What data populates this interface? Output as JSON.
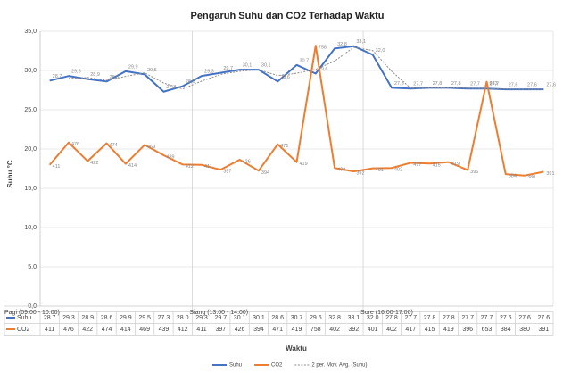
{
  "chart_data": {
    "type": "line",
    "title": "Pengaruh Suhu dan CO2 Terhadap Waktu",
    "y_label": "Suhu °C",
    "x_label": "Waktu",
    "categories": [
      "Pagi (09.00 - 10.00)",
      null,
      null,
      null,
      null,
      null,
      null,
      null,
      "Siang (13.00 - 14.00)",
      null,
      null,
      null,
      null,
      null,
      null,
      null,
      null,
      "Sore (16.00-17.00)",
      null,
      null,
      null,
      null,
      null,
      null,
      null,
      null,
      null
    ],
    "ylim": [
      0,
      35
    ],
    "yticks": [
      {
        "value": 0,
        "label": "0,0"
      },
      {
        "value": 5,
        "label": "5,0"
      },
      {
        "value": 10,
        "label": "10,0"
      },
      {
        "value": 15,
        "label": "15,0"
      },
      {
        "value": 20,
        "label": "20,0"
      },
      {
        "value": 25,
        "label": "25,0"
      },
      {
        "value": 30,
        "label": "30,0"
      },
      {
        "value": 35,
        "label": "35,0"
      }
    ],
    "y2lim": [
      0,
      800
    ],
    "legend": "bottom",
    "series": [
      {
        "name": "Suhu",
        "color": "#4472c4",
        "values": [
          28.7,
          29.3,
          28.9,
          28.6,
          29.9,
          29.5,
          27.3,
          28.0,
          29.3,
          29.7,
          30.1,
          30.1,
          28.6,
          30.7,
          29.6,
          32.8,
          33.1,
          32.0,
          27.8,
          27.7,
          27.8,
          27.8,
          27.7,
          27.7,
          27.6,
          27.6,
          27.6
        ],
        "value_labels": [
          "28,7",
          "29,3",
          "28,9",
          "28,6",
          "29,9",
          "29,5",
          "27,3",
          "28,0",
          "29,3",
          "29,7",
          "30,1",
          "30,1",
          "28,6",
          "30,7",
          "29,6",
          "32,8",
          "33,1",
          "32,0",
          "27,8",
          "27,7",
          "27,8",
          "27,8",
          "27,7",
          "27,7",
          "27,6",
          "27,6",
          "27,6"
        ],
        "table_labels": [
          "28.7",
          "29.3",
          "28.9",
          "28.6",
          "29.9",
          "29.5",
          "27.3",
          "28.0",
          "29.3",
          "29.7",
          "30.1",
          "30.1",
          "28.6",
          "30.7",
          "29.6",
          "32.8",
          "33.1",
          "32.0",
          "27.8",
          "27.7",
          "27.8",
          "27.8",
          "27.7",
          "27.7",
          "27.6",
          "27.6",
          "27.6"
        ]
      },
      {
        "name": "CO2",
        "color": "#ed7d31",
        "axis": "y2",
        "values": [
          411,
          476,
          422,
          474,
          414,
          469,
          439,
          412,
          411,
          397,
          426,
          394,
          471,
          419,
          758,
          402,
          392,
          401,
          402,
          417,
          415,
          419,
          396,
          653,
          384,
          380,
          391
        ]
      },
      {
        "name": "2 per. Mov. Avg. (Suhu)",
        "color": "#8c8c8c",
        "dashed": true,
        "values": [
          null,
          29.0,
          29.1,
          28.75,
          29.25,
          29.7,
          28.4,
          27.65,
          28.65,
          29.5,
          29.9,
          30.1,
          29.35,
          29.65,
          30.15,
          31.2,
          32.95,
          32.55,
          29.9,
          27.75,
          27.75,
          27.8,
          27.75,
          27.7,
          27.65,
          27.6,
          27.6
        ]
      }
    ]
  }
}
